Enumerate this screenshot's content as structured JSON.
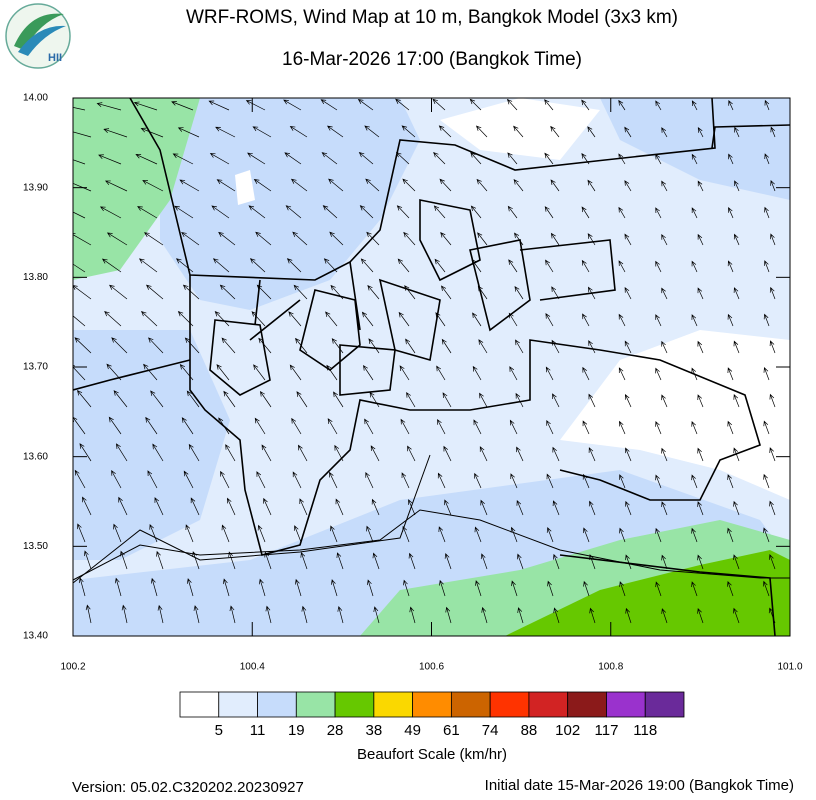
{
  "header": {
    "logo_text": "HII",
    "title": "WRF-ROMS, Wind Map at 10 m, Bangkok Model (3x3 km)",
    "subtitle": "16-Mar-2026 17:00 (Bangkok Time)"
  },
  "map": {
    "lon_range": [
      100.2,
      101.0
    ],
    "lat_range": [
      13.4,
      14.0
    ],
    "lon_ticks": [
      100.2,
      100.4,
      100.6,
      100.8,
      {
        "value": 101.0,
        "label": "101.0"
      }
    ],
    "lat_ticks": [
      {
        "value": 14.0,
        "label": "14.00"
      },
      {
        "value": 13.9,
        "label": "13.90"
      },
      {
        "value": 13.8,
        "label": "13.80"
      },
      {
        "value": 13.7,
        "label": "13.70"
      },
      {
        "value": 13.6,
        "label": "13.60"
      },
      {
        "value": 13.5,
        "label": "13.50"
      },
      {
        "value": 13.4,
        "label": "13.40"
      }
    ]
  },
  "legend": {
    "title": "Beaufort Scale (km/hr)",
    "colors": [
      "#ffffff",
      "#e1edfd",
      "#c6dcfb",
      "#98e4a6",
      "#66c800",
      "#fad800",
      "#ff8c00",
      "#cc6400",
      "#ff3300",
      "#d22323",
      "#8b1a1a",
      "#9a32cd",
      "#6a2a9a"
    ],
    "ticks": [
      5,
      11,
      19,
      28,
      38,
      49,
      61,
      74,
      88,
      102,
      117,
      118
    ]
  },
  "footer": {
    "version": "Version: 05.02.C320202.20230927",
    "initial_date": "Initial date 15-Mar-2026 19:00 (Bangkok Time)"
  }
}
